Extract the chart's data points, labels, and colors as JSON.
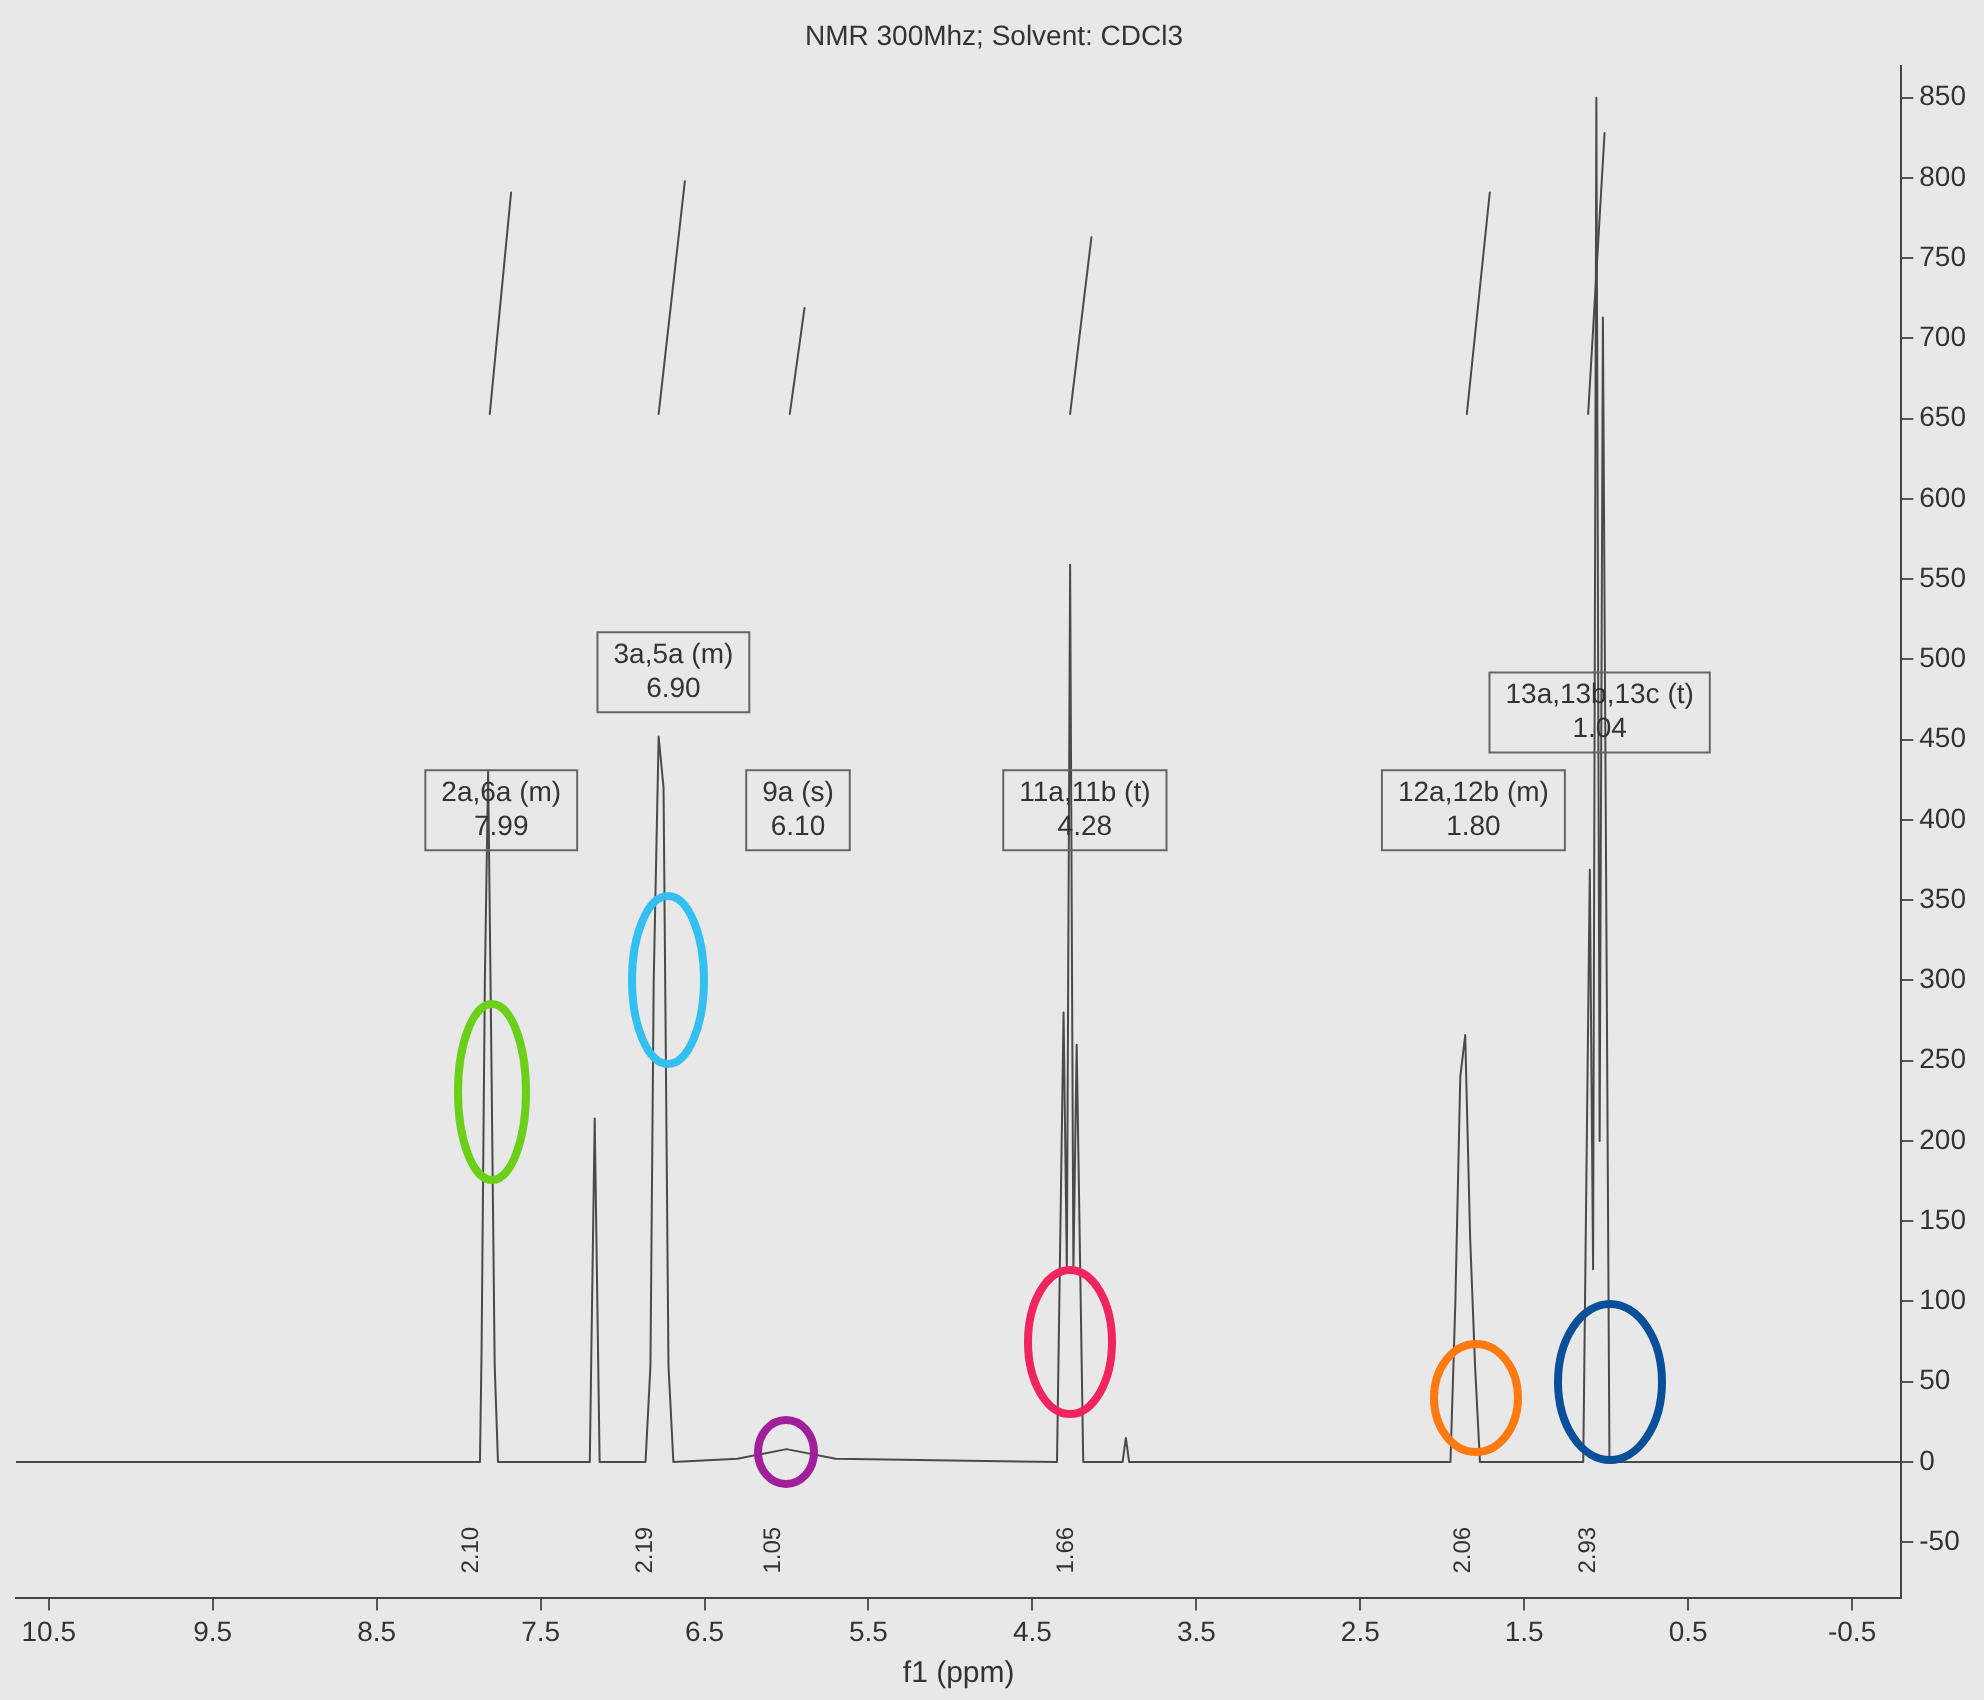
{
  "chart_data": {
    "type": "line",
    "title": "NMR 300Mhz; Solvent: CDCl3",
    "xlabel": "f1 (ppm)",
    "xlim": [
      10.7,
      -0.8
    ],
    "xticks": [
      10.5,
      9.5,
      8.5,
      7.5,
      6.5,
      5.5,
      4.5,
      3.5,
      2.5,
      1.5,
      0.5,
      -0.5
    ],
    "ylim": [
      -85,
      870
    ],
    "yticks": [
      -50,
      0,
      50,
      100,
      150,
      200,
      250,
      300,
      350,
      400,
      450,
      500,
      550,
      600,
      650,
      700,
      750,
      800,
      850
    ],
    "marker": "none",
    "grid": false,
    "legend": false,
    "series": [
      {
        "color": "#4a4a4a",
        "x": [
          10.7,
          7.9,
          7.87,
          7.86,
          7.84,
          7.82,
          7.8,
          7.78,
          7.76,
          7.2,
          7.17,
          7.14,
          6.86,
          6.83,
          6.81,
          6.78,
          6.75,
          6.72,
          6.69,
          6.3,
          6.0,
          5.7,
          4.35,
          4.31,
          4.29,
          4.27,
          4.25,
          4.23,
          4.19,
          3.95,
          3.93,
          3.91,
          1.95,
          1.92,
          1.89,
          1.86,
          1.83,
          1.8,
          1.77,
          1.14,
          1.1,
          1.08,
          1.06,
          1.04,
          1.02,
          0.98,
          -0.8
        ],
        "values": [
          0,
          0,
          0,
          70,
          300,
          431,
          250,
          60,
          0,
          0,
          214,
          0,
          0,
          60,
          300,
          452,
          420,
          60,
          0,
          2,
          8,
          2,
          0,
          280,
          120,
          559,
          120,
          260,
          0,
          0,
          15,
          0,
          0,
          100,
          240,
          266,
          140,
          60,
          0,
          0,
          369,
          120,
          850,
          200,
          713,
          0,
          0
        ]
      },
      {
        "color": "#4a4a4a",
        "x": [
          7.81,
          7.68
        ],
        "values": [
          653,
          791
        ]
      },
      {
        "color": "#4a4a4a",
        "x": [
          6.78,
          6.62
        ],
        "values": [
          653,
          798
        ]
      },
      {
        "color": "#4a4a4a",
        "x": [
          5.98,
          5.89
        ],
        "values": [
          653,
          719
        ]
      },
      {
        "color": "#4a4a4a",
        "x": [
          4.27,
          4.14
        ],
        "values": [
          653,
          763
        ]
      },
      {
        "color": "#4a4a4a",
        "x": [
          1.85,
          1.71
        ],
        "values": [
          653,
          791
        ]
      },
      {
        "color": "#4a4a4a",
        "x": [
          1.11,
          1.01
        ],
        "values": [
          653,
          828
        ]
      }
    ],
    "annotations": [
      "2a,6a (m)\n7.99",
      "3a,5a (m)\n6.90",
      "9a (s)\n6.10",
      "11a,11b (t)\n4.28",
      "12a,12b (m)\n1.80",
      "13a,13b,13c (t)\n1.04",
      "2.10",
      "2.19",
      "1.05",
      "1.66",
      "2.06",
      "2.93"
    ]
  }
}
